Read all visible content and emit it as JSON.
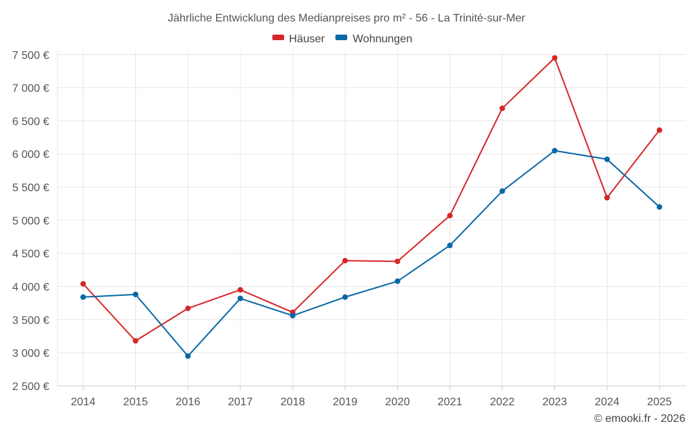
{
  "chart_data": {
    "type": "line",
    "title": "Jährliche Entwicklung des Medianpreises pro m² - 56 - La Trinité-sur-Mer",
    "categories": [
      "2014",
      "2015",
      "2016",
      "2017",
      "2018",
      "2019",
      "2020",
      "2021",
      "2022",
      "2023",
      "2024",
      "2025"
    ],
    "y_ticks": [
      2500,
      3000,
      3500,
      4000,
      4500,
      5000,
      5500,
      6000,
      6500,
      7000,
      7500
    ],
    "y_tick_labels": [
      "2 500 €",
      "3 000 €",
      "3 500 €",
      "4 000 €",
      "4 500 €",
      "5 000 €",
      "5 500 €",
      "6 000 €",
      "6 500 €",
      "7 000 €",
      "7 500 €"
    ],
    "ylim": [
      2500,
      7550
    ],
    "series": [
      {
        "name": "Häuser",
        "color": "#d62728",
        "values": [
          4040,
          3180,
          3670,
          3950,
          3610,
          4390,
          4380,
          5070,
          6690,
          7450,
          5340,
          6360
        ]
      },
      {
        "name": "Wohnungen",
        "color": "#0868a6",
        "values": [
          3840,
          3880,
          2950,
          3820,
          3560,
          3840,
          4080,
          4620,
          5440,
          6050,
          5920,
          5200
        ]
      }
    ],
    "legend_position": "top-center",
    "grid": true
  },
  "credit": "© emooki.fr - 2026"
}
